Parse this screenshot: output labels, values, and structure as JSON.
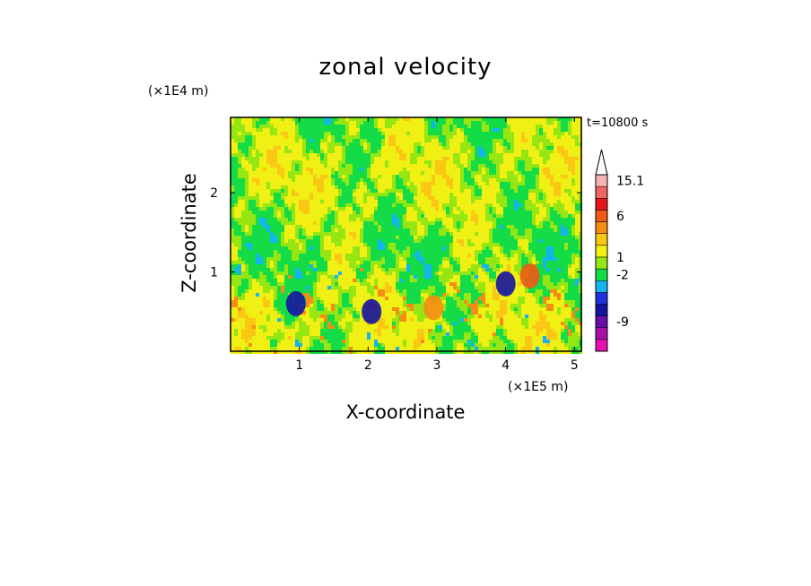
{
  "chart_data": {
    "type": "heatmap",
    "title": "zonal velocity",
    "xlabel": "X-coordinate",
    "ylabel": "Z-coordinate",
    "x_unit": "(×1E5 m)",
    "y_unit": "(×1E4 m)",
    "time_label": "t=10800 s",
    "xlim": [
      0,
      5.1
    ],
    "ylim": [
      0,
      2.95
    ],
    "x_ticks": [
      "1",
      "2",
      "3",
      "4",
      "5"
    ],
    "y_ticks": [
      "1",
      "2"
    ],
    "colorbar": {
      "levels_bottom_to_top": [
        {
          "color": "#e60fb4"
        },
        {
          "color": "#a80fa8"
        },
        {
          "color": "#660fa8"
        },
        {
          "color": "#1414a0"
        },
        {
          "color": "#1e32dc"
        },
        {
          "color": "#14b4f0"
        },
        {
          "color": "#14dc46"
        },
        {
          "color": "#96e614"
        },
        {
          "color": "#f0f014"
        },
        {
          "color": "#fac814"
        },
        {
          "color": "#f58c14"
        },
        {
          "color": "#f05a14"
        },
        {
          "color": "#e61414"
        },
        {
          "color": "#f06464"
        },
        {
          "color": "#f5b4b4"
        }
      ],
      "labels": [
        "-9",
        "-2",
        "1",
        "6",
        "15.1"
      ],
      "extend_top": true
    },
    "features": [
      {
        "x": 0.95,
        "z": 0.6,
        "value": "negative",
        "color": "#1414a0"
      },
      {
        "x": 4.0,
        "z": 0.85,
        "value": "negative",
        "color": "#1414a0"
      },
      {
        "x": 4.35,
        "z": 0.95,
        "value": "positive",
        "color": "#f05a14"
      },
      {
        "x": 2.05,
        "z": 0.5,
        "value": "negative",
        "color": "#1414a0"
      },
      {
        "x": 2.95,
        "z": 0.55,
        "value": "positive",
        "color": "#f58c14"
      }
    ],
    "grid": false
  }
}
